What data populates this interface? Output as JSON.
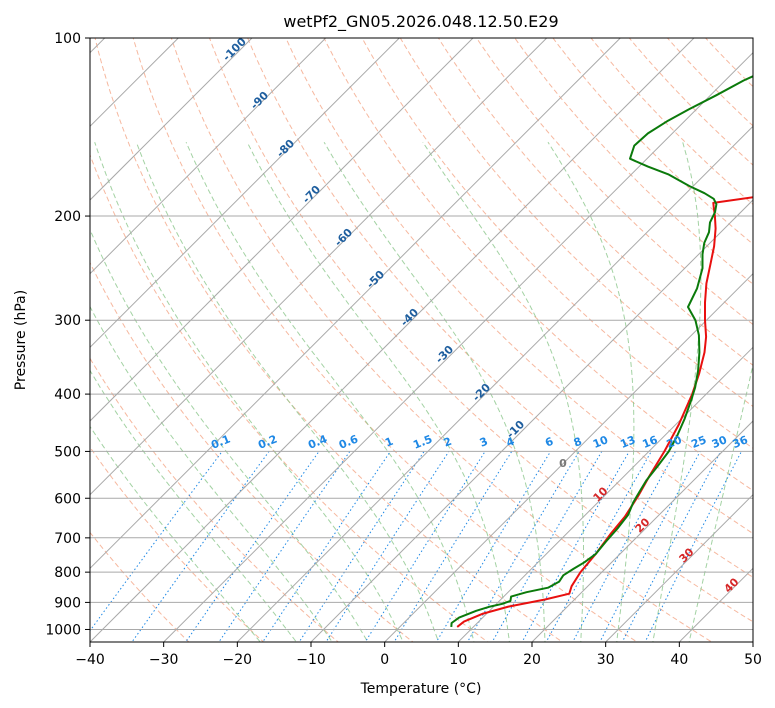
{
  "chart_data": {
    "type": "line",
    "chart_kind": "skew-T log-P diagram",
    "title": "wetPf2_GN05.2026.048.12.50.E29",
    "xlabel": "Temperature (°C)",
    "ylabel": "Pressure (hPa)",
    "xlim": [
      -40,
      50
    ],
    "ylim": [
      1050,
      100
    ],
    "x_ticks": [
      -40,
      -30,
      -20,
      -10,
      0,
      10,
      20,
      30,
      40,
      50
    ],
    "x_tick_labels": [
      "−40",
      "−30",
      "−20",
      "−10",
      "0",
      "10",
      "20",
      "30",
      "40",
      "50"
    ],
    "y_ticks": [
      1000,
      900,
      800,
      700,
      600,
      500,
      400,
      300,
      200,
      100
    ],
    "y_tick_labels": [
      "1000",
      "900",
      "800",
      "700",
      "600",
      "500",
      "400",
      "300",
      "200",
      "100"
    ],
    "grid": true,
    "colors": {
      "temperature": "#e8100f",
      "dewpoint": "#0b7a0b",
      "isotherm": "#a9a9a9",
      "dry_adiabat": "#f3a07f",
      "moist_adiabat": "#8cc78c",
      "mixing_ratio": "#1e88e5",
      "potential_temp_label": "#1f5f9f",
      "equiv_temp_label": "#d62728",
      "gray_label": "#777777"
    },
    "series": [
      {
        "name": "Temperature",
        "color": "#e8100f",
        "points": [
          [
            7.8,
            990
          ],
          [
            8.0,
            970
          ],
          [
            9.5,
            940
          ],
          [
            12.0,
            915
          ],
          [
            16.0,
            890
          ],
          [
            18.5,
            870
          ],
          [
            17.8,
            845
          ],
          [
            17.1,
            800
          ],
          [
            16.7,
            745
          ],
          [
            16.0,
            690
          ],
          [
            15.6,
            645
          ],
          [
            14.6,
            595
          ],
          [
            13.4,
            550
          ],
          [
            12.1,
            500
          ],
          [
            10.4,
            450
          ],
          [
            8.1,
            400
          ],
          [
            6.3,
            370
          ],
          [
            4.1,
            340
          ],
          [
            2.2,
            320
          ],
          [
            -0.2,
            300
          ],
          [
            -2.6,
            280
          ],
          [
            -5.0,
            260
          ],
          [
            -7.2,
            240
          ],
          [
            -9.0,
            225
          ],
          [
            -11.2,
            210
          ],
          [
            -13.0,
            200
          ],
          [
            -14.4,
            193
          ],
          [
            -15.0,
            190
          ],
          [
            -6.0,
            182
          ],
          [
            0.0,
            175
          ],
          [
            3.0,
            168
          ],
          [
            5.5,
            160
          ],
          [
            6.5,
            155
          ],
          [
            6.3,
            150
          ],
          [
            6.2,
            145
          ],
          [
            7.4,
            137
          ],
          [
            9.8,
            130
          ],
          [
            12.6,
            120
          ],
          [
            14.5,
            110
          ],
          [
            16.8,
            100
          ]
        ]
      },
      {
        "name": "Dewpoint",
        "color": "#0b7a0b",
        "points": [
          [
            7.0,
            990
          ],
          [
            6.5,
            975
          ],
          [
            6.8,
            955
          ],
          [
            8.2,
            930
          ],
          [
            9.5,
            915
          ],
          [
            10.8,
            905
          ],
          [
            11.5,
            895
          ],
          [
            11.0,
            880
          ],
          [
            12.5,
            865
          ],
          [
            14.8,
            850
          ],
          [
            15.5,
            830
          ],
          [
            15.2,
            810
          ],
          [
            15.7,
            790
          ],
          [
            16.3,
            770
          ],
          [
            16.7,
            745
          ],
          [
            16.4,
            710
          ],
          [
            16.2,
            675
          ],
          [
            15.8,
            640
          ],
          [
            14.8,
            610
          ],
          [
            14.2,
            585
          ],
          [
            13.6,
            560
          ],
          [
            13.2,
            530
          ],
          [
            12.7,
            500
          ],
          [
            11.7,
            470
          ],
          [
            10.4,
            440
          ],
          [
            8.8,
            410
          ],
          [
            7.6,
            390
          ],
          [
            5.7,
            365
          ],
          [
            3.4,
            340
          ],
          [
            1.0,
            318
          ],
          [
            -1.5,
            300
          ],
          [
            -4.3,
            285
          ],
          [
            -5.6,
            265
          ],
          [
            -7.6,
            245
          ],
          [
            -9.5,
            232
          ],
          [
            -10.8,
            222
          ],
          [
            -11.6,
            213
          ],
          [
            -12.8,
            205
          ],
          [
            -13.5,
            197
          ],
          [
            -14.4,
            191
          ],
          [
            -15.5,
            187
          ],
          [
            -17.5,
            183
          ],
          [
            -20.5,
            178
          ],
          [
            -25.0,
            170
          ],
          [
            -28.8,
            165
          ],
          [
            -32.3,
            160
          ],
          [
            -33.5,
            152
          ],
          [
            -33.3,
            145
          ],
          [
            -32.3,
            138
          ],
          [
            -31.0,
            132
          ],
          [
            -29.2,
            125
          ],
          [
            -27.5,
            118
          ],
          [
            -24.5,
            110
          ],
          [
            -20.5,
            104
          ],
          [
            -17.8,
            100
          ]
        ]
      }
    ],
    "mixing_ratio_labels": [
      "0.1",
      "0.2",
      "0.4",
      "0.6",
      "1",
      "1.5",
      "2",
      "3",
      "4",
      "6",
      "8",
      "10",
      "13",
      "16",
      "20",
      "25",
      "30",
      "36"
    ],
    "potential_temperature_labels": [
      "-100",
      "-90",
      "-80",
      "-70",
      "-60",
      "-50",
      "-40",
      "-30",
      "-20",
      "-10"
    ],
    "equivalent_temperature_labels": [
      "10",
      "20",
      "30",
      "40"
    ],
    "extra_labels": [
      "0"
    ]
  }
}
